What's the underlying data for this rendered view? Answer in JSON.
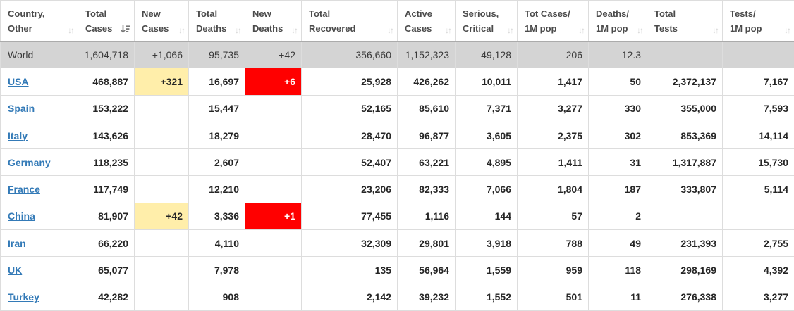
{
  "colors": {
    "link_blue": "#337ab7",
    "highlight_yellow": "#ffeeaa",
    "highlight_red": "#ff0000",
    "world_row_bg": "#d4d4d4",
    "header_text": "#4b4b4b",
    "border": "#dddddd"
  },
  "icons": {
    "sort_inactive_glyph": "↓↑",
    "sort_active_name": "sort-amount-desc"
  },
  "table": {
    "columns": [
      {
        "key": "country",
        "label_line1": "Country,",
        "label_line2": "Other",
        "sort": "none"
      },
      {
        "key": "total_cases",
        "label_line1": "Total",
        "label_line2": "Cases",
        "sort": "desc"
      },
      {
        "key": "new_cases",
        "label_line1": "New",
        "label_line2": "Cases",
        "sort": "none"
      },
      {
        "key": "total_deaths",
        "label_line1": "Total",
        "label_line2": "Deaths",
        "sort": "none"
      },
      {
        "key": "new_deaths",
        "label_line1": "New",
        "label_line2": "Deaths",
        "sort": "none"
      },
      {
        "key": "total_recovered",
        "label_line1": "Total",
        "label_line2": "Recovered",
        "sort": "none"
      },
      {
        "key": "active_cases",
        "label_line1": "Active",
        "label_line2": "Cases",
        "sort": "none"
      },
      {
        "key": "serious_critical",
        "label_line1": "Serious,",
        "label_line2": "Critical",
        "sort": "none"
      },
      {
        "key": "tot_cases_1m",
        "label_line1": "Tot Cases/",
        "label_line2": "1M pop",
        "sort": "none"
      },
      {
        "key": "deaths_1m",
        "label_line1": "Deaths/",
        "label_line2": "1M pop",
        "sort": "none"
      },
      {
        "key": "total_tests",
        "label_line1": "Total",
        "label_line2": "Tests",
        "sort": "none"
      },
      {
        "key": "tests_1m",
        "label_line1": "Tests/",
        "label_line2": "1M pop",
        "sort": "none"
      }
    ],
    "rows": [
      {
        "country": "World",
        "link": false,
        "world": true,
        "cells": [
          "1,604,718",
          "+1,066",
          "95,735",
          "+42",
          "356,660",
          "1,152,323",
          "49,128",
          "206",
          "12.3",
          "",
          ""
        ],
        "highlights": {}
      },
      {
        "country": "USA",
        "link": true,
        "world": false,
        "cells": [
          "468,887",
          "+321",
          "16,697",
          "+6",
          "25,928",
          "426,262",
          "10,011",
          "1,417",
          "50",
          "2,372,137",
          "7,167"
        ],
        "highlights": {
          "1": "yellow",
          "3": "red"
        }
      },
      {
        "country": "Spain",
        "link": true,
        "world": false,
        "cells": [
          "153,222",
          "",
          "15,447",
          "",
          "52,165",
          "85,610",
          "7,371",
          "3,277",
          "330",
          "355,000",
          "7,593"
        ],
        "highlights": {}
      },
      {
        "country": "Italy",
        "link": true,
        "world": false,
        "cells": [
          "143,626",
          "",
          "18,279",
          "",
          "28,470",
          "96,877",
          "3,605",
          "2,375",
          "302",
          "853,369",
          "14,114"
        ],
        "highlights": {}
      },
      {
        "country": "Germany",
        "link": true,
        "world": false,
        "cells": [
          "118,235",
          "",
          "2,607",
          "",
          "52,407",
          "63,221",
          "4,895",
          "1,411",
          "31",
          "1,317,887",
          "15,730"
        ],
        "highlights": {}
      },
      {
        "country": "France",
        "link": true,
        "world": false,
        "cells": [
          "117,749",
          "",
          "12,210",
          "",
          "23,206",
          "82,333",
          "7,066",
          "1,804",
          "187",
          "333,807",
          "5,114"
        ],
        "highlights": {}
      },
      {
        "country": "China",
        "link": true,
        "world": false,
        "cells": [
          "81,907",
          "+42",
          "3,336",
          "+1",
          "77,455",
          "1,116",
          "144",
          "57",
          "2",
          "",
          ""
        ],
        "highlights": {
          "1": "yellow",
          "3": "red"
        }
      },
      {
        "country": "Iran",
        "link": true,
        "world": false,
        "cells": [
          "66,220",
          "",
          "4,110",
          "",
          "32,309",
          "29,801",
          "3,918",
          "788",
          "49",
          "231,393",
          "2,755"
        ],
        "highlights": {}
      },
      {
        "country": "UK",
        "link": true,
        "world": false,
        "cells": [
          "65,077",
          "",
          "7,978",
          "",
          "135",
          "56,964",
          "1,559",
          "959",
          "118",
          "298,169",
          "4,392"
        ],
        "highlights": {}
      },
      {
        "country": "Turkey",
        "link": true,
        "world": false,
        "cells": [
          "42,282",
          "",
          "908",
          "",
          "2,142",
          "39,232",
          "1,552",
          "501",
          "11",
          "276,338",
          "3,277"
        ],
        "highlights": {}
      }
    ]
  }
}
